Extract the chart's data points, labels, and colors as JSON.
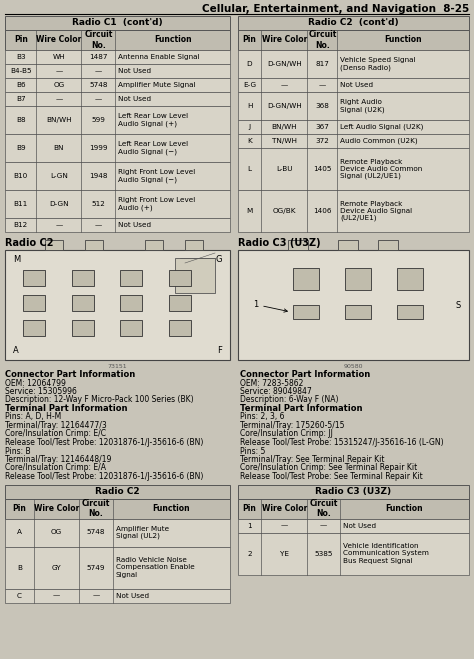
{
  "page_header": "Cellular, Entertainment, and Navigation  8-25",
  "bg_color": "#c8c4b8",
  "table_bg": "#dedad0",
  "header_bg": "#c0bcb0",
  "row_bg": "#d8d4c8",
  "c1_title": "Radio C1  (cont'd)",
  "c1_headers": [
    "Pin",
    "Wire Color",
    "Circuit\nNo.",
    "Function"
  ],
  "c1_rows": [
    [
      "B3",
      "WH",
      "1487",
      "Antenna Enable Signal"
    ],
    [
      "B4-B5",
      "—",
      "—",
      "Not Used"
    ],
    [
      "B6",
      "OG",
      "5748",
      "Amplifier Mute Signal"
    ],
    [
      "B7",
      "—",
      "—",
      "Not Used"
    ],
    [
      "B8",
      "BN/WH",
      "599",
      "Left Rear Low Level\nAudio Signal (+)"
    ],
    [
      "B9",
      "BN",
      "1999",
      "Left Rear Low Level\nAudio Signal (−)"
    ],
    [
      "B10",
      "L-GN",
      "1948",
      "Right Front Low Level\nAudio Signal (−)"
    ],
    [
      "B11",
      "D-GN",
      "512",
      "Right Front Low Level\nAudio (+)"
    ],
    [
      "B12",
      "—",
      "—",
      "Not Used"
    ]
  ],
  "c2cont_title": "Radio C2  (cont'd)",
  "c2cont_headers": [
    "Pin",
    "Wire Color",
    "Circuit\nNo.",
    "Function"
  ],
  "c2cont_rows": [
    [
      "D",
      "D-GN/WH",
      "817",
      "Vehicle Speed Signal\n(Denso Radio)"
    ],
    [
      "E-G",
      "—",
      "—",
      "Not Used"
    ],
    [
      "H",
      "D-GN/WH",
      "368",
      "Right Audio\nSignal (U2K)"
    ],
    [
      "J",
      "BN/WH",
      "367",
      "Left Audio Signal (U2K)"
    ],
    [
      "K",
      "TN/WH",
      "372",
      "Audio Common (U2K)"
    ],
    [
      "L",
      "L-BU",
      "1405",
      "Remote Playback\nDevice Audio Common\nSignal (UL2/UE1)"
    ],
    [
      "M",
      "OG/BK",
      "1406",
      "Remote Playback\nDevice Audio Signal\n(UL2/UE1)"
    ]
  ],
  "c3_title": "Radio C3 (U3Z)",
  "c2_title": "Radio C2",
  "c2_headers": [
    "Pin",
    "Wire Color",
    "Circuit\nNo.",
    "Function"
  ],
  "c2_rows": [
    [
      "A",
      "OG",
      "5748",
      "Amplifier Mute\nSignal (UL2)"
    ],
    [
      "B",
      "GY",
      "5749",
      "Radio Vehicle Noise\nCompensation Enable\nSignal"
    ],
    [
      "C",
      "—",
      "—",
      "Not Used"
    ]
  ],
  "c3bot_title": "Radio C3 (U3Z)",
  "c3bot_headers": [
    "Pin",
    "Wire Color",
    "Circuit\nNo.",
    "Function"
  ],
  "c3bot_rows": [
    [
      "1",
      "—",
      "—",
      "Not Used"
    ],
    [
      "2",
      "YE",
      "5385",
      "Vehicle Identification\nCommunication System\nBus Request Signal"
    ]
  ],
  "left_connector_info": [
    [
      "Connector Part Information",
      true
    ],
    [
      "OEM: 12064799",
      false
    ],
    [
      "Service: 15305996",
      false
    ],
    [
      "Description: 12-Way F Micro-Pack 100 Series (BK)",
      false
    ],
    [
      "Terminal Part Information",
      true
    ],
    [
      "Pins: A, D, H-M",
      false
    ],
    [
      "Terminal/Tray: 12164477/3",
      false
    ],
    [
      "Core/Insulation Crimp: E/C",
      false
    ],
    [
      "Release Tool/Test Probe: 12031876-1/J-35616-6 (BN)",
      false
    ],
    [
      "Pins: B",
      false
    ],
    [
      "Terminal/Tray: 12146448/19",
      false
    ],
    [
      "Core/Insulation Crimp: E/A",
      false
    ],
    [
      "Release Tool/Test Probe: 12031876-1/J-35616-6 (BN)",
      false
    ]
  ],
  "right_connector_info": [
    [
      "Connector Part Information",
      true
    ],
    [
      "OEM: 7283-5862",
      false
    ],
    [
      "Service: 89049847",
      false
    ],
    [
      "Description: 6-Way F (NA)",
      false
    ],
    [
      "Terminal Part Information",
      true
    ],
    [
      "Pins: 2, 3, 6",
      false
    ],
    [
      "Terminal/Tray: 175260-5/15",
      false
    ],
    [
      "Core/Insulation Crimp: JJ",
      false
    ],
    [
      "Release Tool/Test Probe: 15315247/J-35616-16 (L-GN)",
      false
    ],
    [
      "Pins: 5",
      false
    ],
    [
      "Terminal/Tray: See Terminal Repair Kit",
      false
    ],
    [
      "Core/Insulation Crimp: See Terminal Repair Kit",
      false
    ],
    [
      "Release Tool/Test Probe: See Terminal Repair Kit",
      false
    ]
  ]
}
